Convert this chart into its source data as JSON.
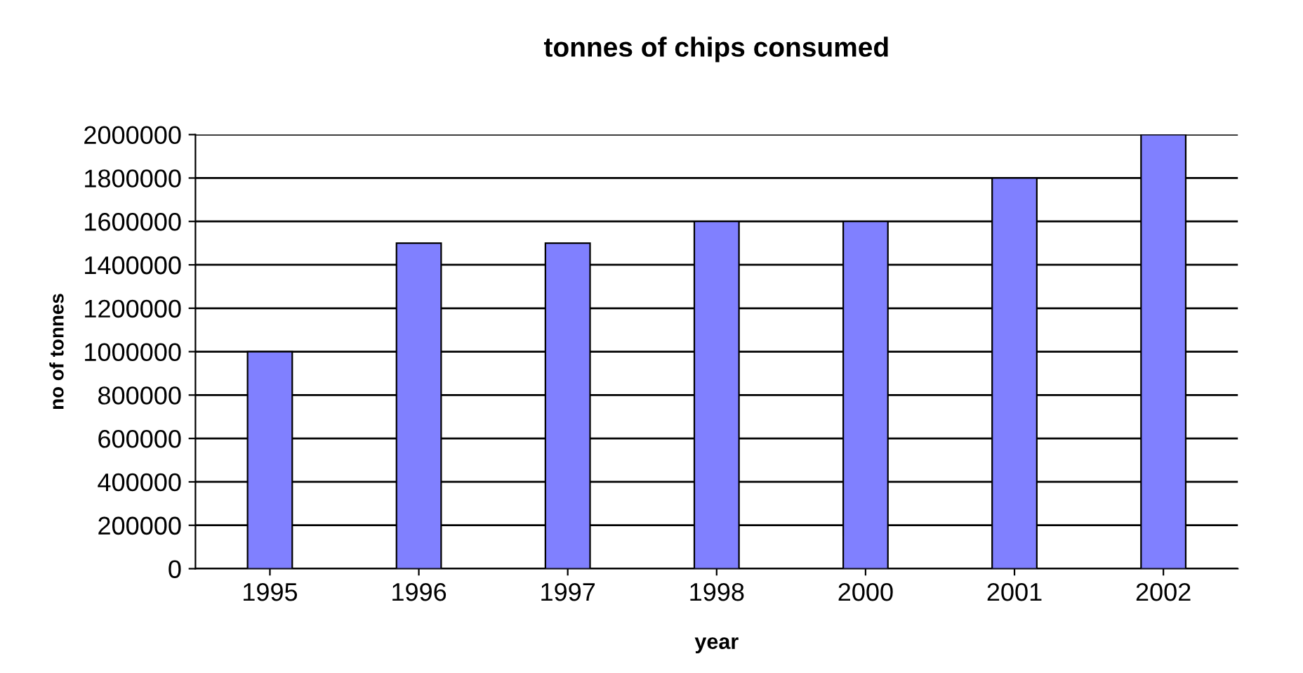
{
  "chart_data": {
    "type": "bar",
    "title": "tonnes of chips consumed",
    "xlabel": "year",
    "ylabel": "no of tonnes",
    "categories": [
      "1995",
      "1996",
      "1997",
      "1998",
      "2000",
      "2001",
      "2002"
    ],
    "values": [
      1000000,
      1500000,
      1500000,
      1600000,
      1600000,
      1800000,
      2000000
    ],
    "color": "#8080ff",
    "ylim": [
      0,
      2000000
    ],
    "yticks": [
      0,
      200000,
      400000,
      600000,
      800000,
      1000000,
      1200000,
      1400000,
      1600000,
      1800000,
      2000000
    ],
    "grid": "y",
    "legend": false
  }
}
